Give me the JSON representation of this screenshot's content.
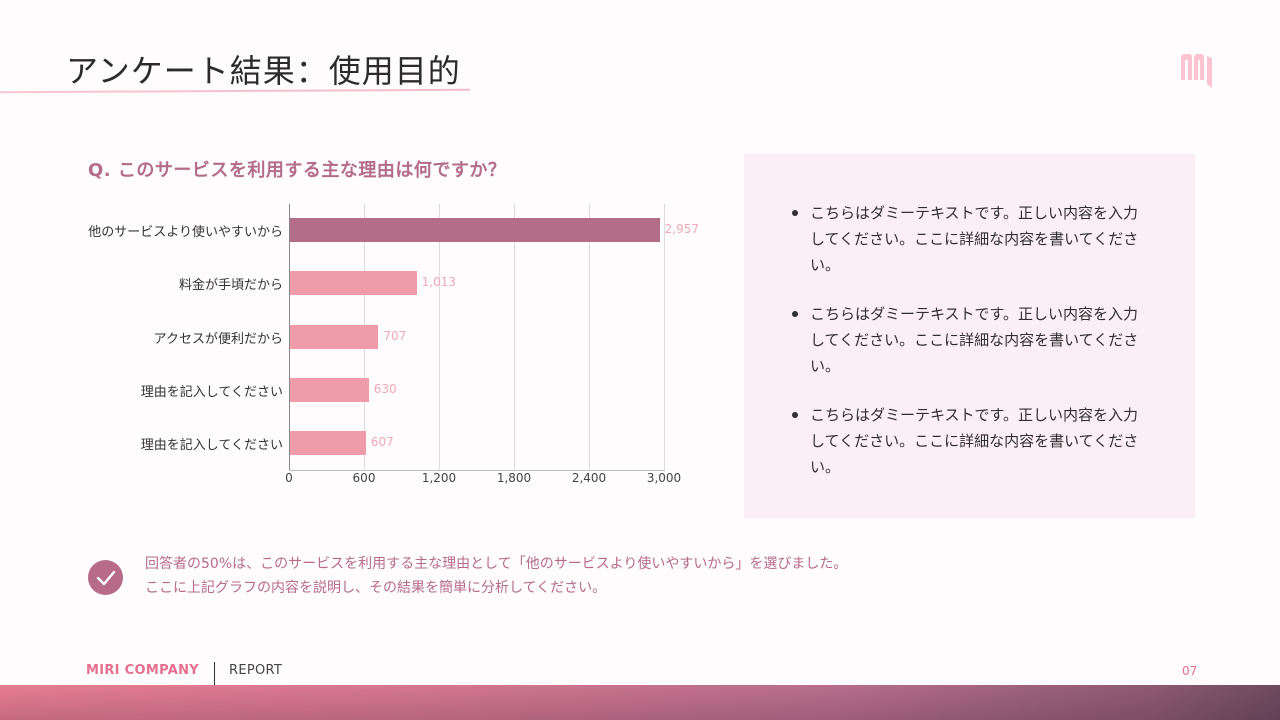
{
  "header": {
    "title": "アンケート結果：使用目的",
    "logo_icon": "brand-m-logo-icon"
  },
  "question": {
    "text": "Q. このサービスを利用する主な理由は何ですか？"
  },
  "chart_data": {
    "type": "bar",
    "orientation": "horizontal",
    "title": "Q. このサービスを利用する主な理由は何ですか？",
    "xlabel": "",
    "ylabel": "",
    "categories": [
      "他のサービスより使いやすいから",
      "料金が手頃だから",
      "アクセスが便利だから",
      "理由を記入してください",
      "理由を記入してください"
    ],
    "values": [
      2957,
      1013,
      707,
      630,
      607
    ],
    "value_labels": [
      "2,957",
      "1,013",
      "707",
      "630",
      "607"
    ],
    "xlim": [
      0,
      3000
    ],
    "x_ticks": [
      "0",
      "600",
      "1,200",
      "1,800",
      "2,400",
      "3,000"
    ],
    "x_tick_values": [
      0,
      600,
      1200,
      1800,
      2400,
      3000
    ],
    "grid": true,
    "legend": "none",
    "colors": {
      "highlight": "#b46d87",
      "default": "#f09ba9",
      "value_label": "#f2a9b9"
    }
  },
  "panel": {
    "bullets": [
      "こちらはダミーテキストです。正しい内容を入力してください。ここに詳細な内容を書いてください。",
      "こちらはダミーテキストです。正しい内容を入力してください。ここに詳細な内容を書いてください。",
      "こちらはダミーテキストです。正しい内容を入力してください。ここに詳細な内容を書いてください。"
    ]
  },
  "summary": {
    "icon": "check-circle-icon",
    "line1": "回答者の50%は、このサービスを利用する主な理由として「他のサービスより使いやすいから」を選びました。",
    "line2": "ここに上記グラフの内容を説明し、その結果を簡単に分析してください。"
  },
  "footer": {
    "brand": "MIRI COMPANY",
    "section": "REPORT",
    "page": "07"
  },
  "colors": {
    "accent": "#b76b89",
    "brand_pink": "#e56f8f",
    "panel_bg": "#fbeff5"
  }
}
